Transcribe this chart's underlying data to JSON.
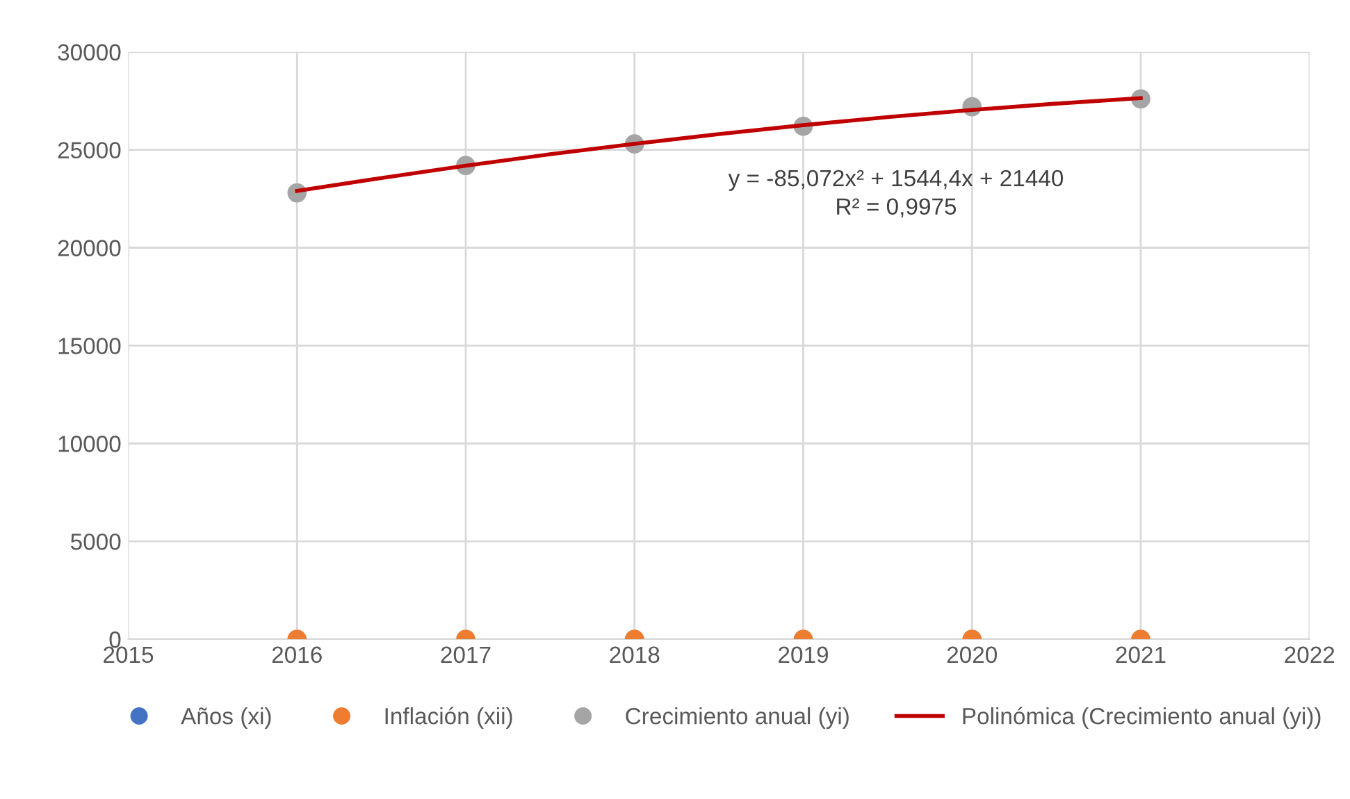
{
  "chart_data": {
    "type": "scatter",
    "x": [
      2016,
      2017,
      2018,
      2019,
      2020,
      2021
    ],
    "series": [
      {
        "name": "Años (xi)",
        "color": "#4472c4",
        "values": [
          null,
          null,
          null,
          null,
          null,
          null
        ]
      },
      {
        "name": "Inflación (xii)",
        "color": "#ed7d31",
        "values": [
          0,
          0,
          0,
          0,
          0,
          0
        ]
      },
      {
        "name": "Crecimiento anual (yi)",
        "color": "#a5a5a5",
        "values": [
          22800,
          24200,
          25300,
          26200,
          27200,
          27600
        ]
      },
      {
        "name": "Polinómica (Crecimiento anual (yi))",
        "type": "line",
        "marker": "none",
        "color": "#c00000",
        "x": [
          2016,
          2016.5,
          2017,
          2017.5,
          2018,
          2018.5,
          2019,
          2019.5,
          2020,
          2020.5,
          2021
        ],
        "values": [
          22900,
          23560,
          24190,
          24770,
          25310,
          25800,
          26260,
          26670,
          27040,
          27360,
          27640
        ]
      }
    ],
    "xlim": [
      2015,
      2022
    ],
    "xticks": [
      2015,
      2016,
      2017,
      2018,
      2019,
      2020,
      2021,
      2022
    ],
    "ylim": [
      0,
      30000
    ],
    "yticks": [
      0,
      5000,
      10000,
      15000,
      20000,
      25000,
      30000
    ],
    "annotations": [
      "y = -85,072x² + 1544,4x + 21440\nR² = 0,9975"
    ],
    "grid": true,
    "legend": "bottom",
    "marker": "circle"
  }
}
